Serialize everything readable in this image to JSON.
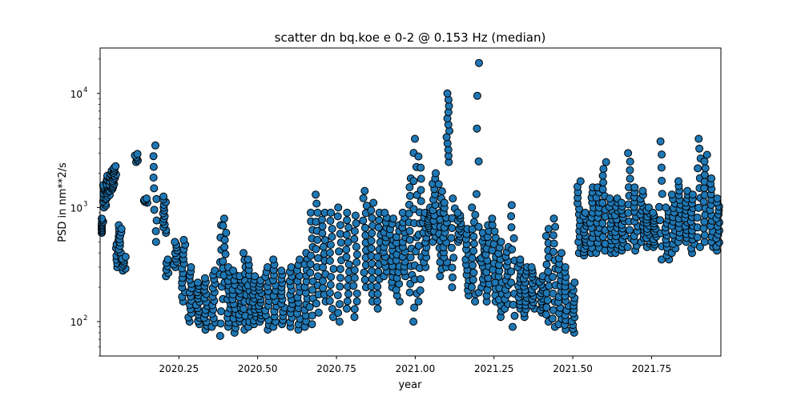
{
  "chart_data": {
    "type": "scatter",
    "title": "scatter dn bq.koe e 0-2 @ 0.153 Hz (median)",
    "xlabel": "year",
    "ylabel": "PSD in nm**2/s",
    "xlim": [
      2020.0,
      2021.97
    ],
    "ylim": [
      50,
      25000
    ],
    "yscale": "log",
    "grid": false,
    "legend": "none",
    "marker_color": "#1f77b4",
    "marker_edge_color": "#000000",
    "x_ticks": [
      2020.25,
      2020.5,
      2020.75,
      2021.0,
      2021.25,
      2021.5,
      2021.75
    ],
    "x_tick_labels": [
      "2020.25",
      "2020.50",
      "2020.75",
      "2021.00",
      "2021.25",
      "2021.50",
      "2021.75"
    ],
    "y_ticks": [
      100,
      1000,
      10000
    ],
    "y_tick_labels": [
      "10",
      "10",
      "10"
    ],
    "y_tick_exponents": [
      "2",
      "3",
      "4"
    ],
    "points": {
      "x": [
        2020.005,
        2020.015,
        2020.025,
        2020.035,
        2020.045,
        2020.055,
        2020.065,
        2020.075,
        2020.115,
        2020.145,
        2020.175,
        2020.205,
        2020.215,
        2020.24,
        2020.265,
        2020.285,
        2020.31,
        2020.335,
        2020.36,
        2020.385,
        2020.395,
        2020.41,
        2020.425,
        2020.445,
        2020.46,
        2020.475,
        2020.49,
        2020.51,
        2020.53,
        2020.555,
        2020.58,
        2020.605,
        2020.63,
        2020.655,
        2020.67,
        2020.69,
        2020.71,
        2020.735,
        2020.76,
        2020.785,
        2020.81,
        2020.84,
        2020.865,
        2020.885,
        2020.905,
        2020.925,
        2020.945,
        2020.965,
        2020.985,
        2021.0,
        2021.015,
        2021.03,
        2021.045,
        2021.06,
        2021.08,
        2021.095,
        2021.105,
        2021.12,
        2021.14,
        2021.165,
        2021.185,
        2021.2,
        2021.215,
        2021.23,
        2021.25,
        2021.27,
        2021.29,
        2021.31,
        2021.33,
        2021.35,
        2021.375,
        2021.4,
        2021.42,
        2021.44,
        2021.46,
        2021.48,
        2021.5,
        2021.52,
        2021.54,
        2021.56,
        2021.58,
        2021.6,
        2021.62,
        2021.64,
        2021.66,
        2021.68,
        2021.7,
        2021.72,
        2021.74,
        2021.76,
        2021.78,
        2021.8,
        2021.82,
        2021.84,
        2021.86,
        2021.88,
        2021.9,
        2021.92,
        2021.94,
        2021.96
      ],
      "y_low": [
        600,
        1000,
        1200,
        1400,
        1500,
        300,
        350,
        280,
        2500,
        1100,
        500,
        600,
        250,
        300,
        150,
        100,
        95,
        85,
        90,
        75,
        220,
        90,
        80,
        100,
        85,
        90,
        95,
        100,
        85,
        90,
        95,
        90,
        85,
        90,
        95,
        120,
        150,
        110,
        100,
        130,
        110,
        200,
        150,
        130,
        250,
        200,
        150,
        250,
        180,
        100,
        150,
        300,
        600,
        500,
        250,
        300,
        2500,
        200,
        500,
        170,
        150,
        180,
        200,
        150,
        150,
        110,
        130,
        90,
        130,
        110,
        130,
        120,
        100,
        90,
        95,
        85,
        80,
        400,
        380,
        400,
        400,
        420,
        400,
        400,
        420,
        450,
        420,
        500,
        450,
        450,
        350,
        350,
        400,
        500,
        500,
        400,
        450,
        500,
        450,
        420
      ],
      "y_high": [
        800,
        1700,
        1900,
        2100,
        2300,
        700,
        650,
        370,
        2950,
        1200,
        3500,
        1250,
        350,
        500,
        520,
        300,
        220,
        240,
        280,
        700,
        800,
        300,
        280,
        250,
        400,
        350,
        250,
        230,
        300,
        350,
        280,
        300,
        350,
        400,
        900,
        1300,
        900,
        900,
        1000,
        900,
        850,
        1400,
        1100,
        900,
        900,
        800,
        700,
        900,
        1800,
        4000,
        2800,
        900,
        1000,
        2000,
        1600,
        1100,
        10000,
        1200,
        900,
        650,
        1000,
        18500,
        600,
        700,
        800,
        500,
        450,
        1050,
        350,
        300,
        300,
        250,
        650,
        800,
        400,
        300,
        220,
        1700,
        900,
        1500,
        1500,
        2500,
        1200,
        1200,
        1100,
        3000,
        1500,
        1400,
        1000,
        900,
        3800,
        1000,
        1300,
        1700,
        1400,
        1300,
        4000,
        2900,
        1800,
        1200
      ],
      "n": [
        10,
        14,
        14,
        14,
        14,
        12,
        10,
        8,
        6,
        5,
        10,
        14,
        6,
        10,
        14,
        14,
        14,
        14,
        14,
        10,
        10,
        14,
        14,
        14,
        12,
        14,
        14,
        14,
        14,
        14,
        14,
        14,
        14,
        14,
        14,
        14,
        14,
        14,
        14,
        14,
        14,
        14,
        14,
        14,
        14,
        14,
        14,
        14,
        14,
        14,
        14,
        12,
        12,
        14,
        14,
        14,
        12,
        10,
        12,
        14,
        14,
        8,
        14,
        14,
        14,
        14,
        14,
        12,
        14,
        14,
        14,
        14,
        14,
        14,
        14,
        14,
        14,
        14,
        14,
        14,
        14,
        14,
        14,
        14,
        14,
        12,
        14,
        14,
        14,
        14,
        10,
        14,
        14,
        14,
        14,
        14,
        12,
        14,
        14,
        14
      ]
    }
  }
}
